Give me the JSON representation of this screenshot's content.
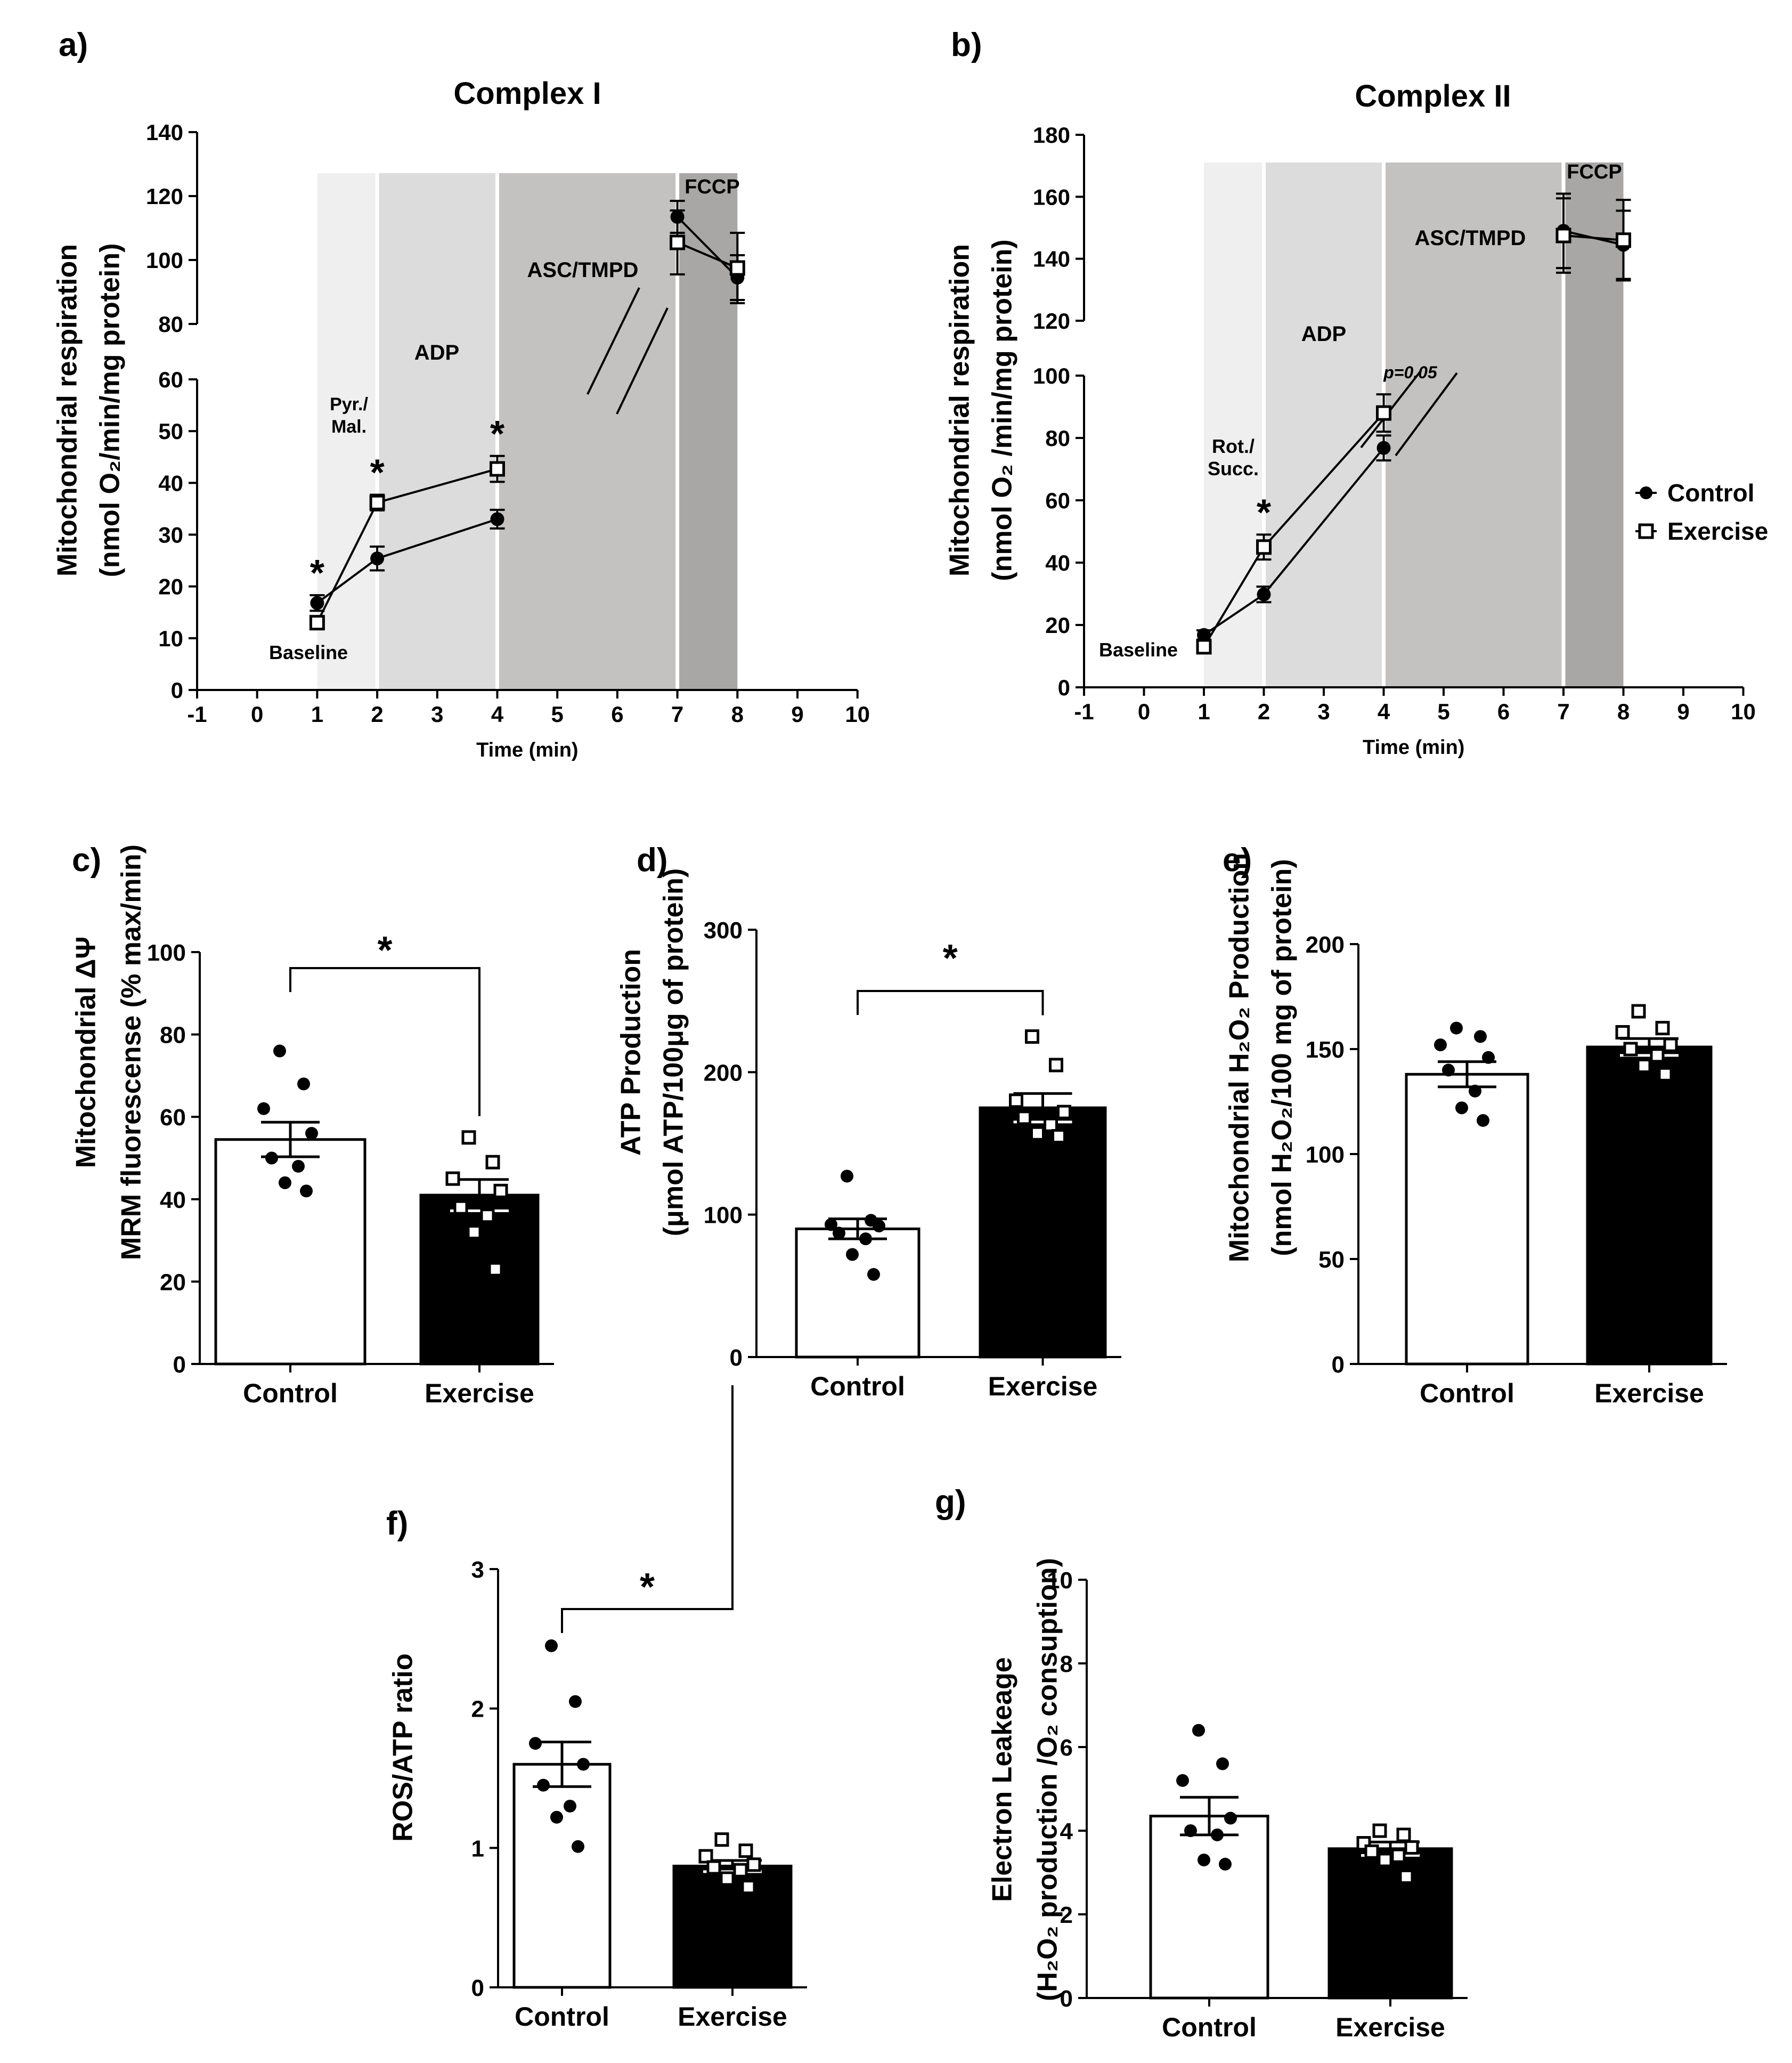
{
  "chart_data": [
    {
      "id": "a",
      "panel_label": "a)",
      "type": "line",
      "title": "Complex I",
      "xlabel": "Time (min)",
      "ylabel": [
        "Mitochondrial respiration",
        "(nmol O₂/min/mg protein)"
      ],
      "xlim": [
        -1,
        10
      ],
      "xticks": [
        "-1",
        "0",
        "1",
        "2",
        "3",
        "4",
        "5",
        "6",
        "7",
        "8",
        "9",
        "10"
      ],
      "ylim_lower": [
        0,
        60
      ],
      "yticks_lower": [
        "0",
        "10",
        "20",
        "30",
        "40",
        "50",
        "60"
      ],
      "ylim_upper": [
        80,
        140
      ],
      "yticks_upper": [
        "80",
        "100",
        "120",
        "140"
      ],
      "phases": [
        {
          "label": "Baseline",
          "x_start": 1,
          "x_end": 1
        },
        {
          "label": "Pyr./Mal.",
          "x_start": 1,
          "x_end": 2
        },
        {
          "label": "ADP",
          "x_start": 2,
          "x_end": 4
        },
        {
          "label": "ASC/TMPD",
          "x_start": 4,
          "x_end": 7
        },
        {
          "label": "FCCP",
          "x_start": 7,
          "x_end": 8
        }
      ],
      "series": [
        {
          "name": "Control",
          "marker": "filled-circle",
          "points": [
            [
              1,
              16.8
            ],
            [
              2,
              25.4
            ],
            [
              4,
              33.0
            ],
            [
              7,
              113.5
            ],
            [
              8,
              94.5
            ]
          ],
          "errors": [
            1.5,
            2.3,
            1.8,
            5,
            7
          ]
        },
        {
          "name": "Exercise",
          "marker": "open-square",
          "points": [
            [
              1,
              13.0
            ],
            [
              2,
              36.2
            ],
            [
              4,
              42.7
            ],
            [
              7,
              105.5
            ],
            [
              8,
              97.5
            ]
          ],
          "errors": [
            1,
            1.5,
            2.5,
            10,
            11
          ]
        }
      ],
      "significance": [
        {
          "x": 1,
          "label": "*"
        },
        {
          "x": 2,
          "label": "*"
        },
        {
          "x": 4,
          "label": "*"
        }
      ]
    },
    {
      "id": "b",
      "panel_label": "b)",
      "type": "line",
      "title": "Complex II",
      "xlabel": "Time (min)",
      "ylabel": [
        "Mitochondrial respiration",
        "(nmol O₂ /min/mg protein)"
      ],
      "xlim": [
        -1,
        10
      ],
      "xticks": [
        "-1",
        "0",
        "1",
        "2",
        "3",
        "4",
        "5",
        "6",
        "7",
        "8",
        "9",
        "10"
      ],
      "ylim_lower": [
        0,
        100
      ],
      "yticks_lower": [
        "0",
        "20",
        "40",
        "60",
        "80",
        "100"
      ],
      "ylim_upper": [
        120,
        180
      ],
      "yticks_upper": [
        "120",
        "140",
        "160",
        "180"
      ],
      "phases": [
        {
          "label": "Baseline",
          "x_start": 1,
          "x_end": 1
        },
        {
          "label": "Rot./Succ.",
          "x_start": 1,
          "x_end": 2
        },
        {
          "label": "ADP",
          "x_start": 2,
          "x_end": 4
        },
        {
          "label": "ASC/TMPD",
          "x_start": 4,
          "x_end": 7
        },
        {
          "label": "FCCP",
          "x_start": 7,
          "x_end": 8
        }
      ],
      "series": [
        {
          "name": "Control",
          "marker": "filled-circle",
          "points": [
            [
              1,
              16.8
            ],
            [
              2,
              29.8
            ],
            [
              4,
              76.8
            ],
            [
              7,
              149.0
            ],
            [
              8,
              144.5
            ]
          ],
          "errors": [
            1.5,
            2.5,
            4,
            12,
            11
          ]
        },
        {
          "name": "Exercise",
          "marker": "open-square",
          "points": [
            [
              1,
              13.0
            ],
            [
              2,
              45.0
            ],
            [
              4,
              88.0
            ],
            [
              7,
              147.5
            ],
            [
              8,
              146.0
            ]
          ],
          "errors": [
            1,
            4,
            6,
            12,
            13
          ]
        }
      ],
      "significance": [
        {
          "x": 2,
          "label": "*"
        },
        {
          "x": 4,
          "label": "p=0.05"
        }
      ],
      "legend": [
        "Control",
        "Exercise"
      ]
    },
    {
      "id": "c",
      "panel_label": "c)",
      "type": "bar",
      "categories": [
        "Control",
        "Exercise"
      ],
      "values": [
        54.5,
        41.0
      ],
      "sem": [
        4.2,
        3.8
      ],
      "points": [
        [
          76,
          68,
          62,
          56,
          50,
          48,
          44,
          42
        ],
        [
          55,
          49,
          45,
          42,
          38,
          36,
          32,
          23
        ]
      ],
      "ylabel": [
        "Mitochondrial ΔΨ",
        "MRM fluorescense (% max/min)"
      ],
      "ylim": [
        0,
        100
      ],
      "yticks": [
        "0",
        "20",
        "40",
        "60",
        "80",
        "100"
      ],
      "significance": "*"
    },
    {
      "id": "d",
      "panel_label": "d)",
      "type": "bar",
      "categories": [
        "Control",
        "Exercise"
      ],
      "values": [
        90.0,
        175.0
      ],
      "sem": [
        7,
        10
      ],
      "points": [
        [
          127,
          96,
          93,
          92,
          87,
          83,
          72,
          58
        ],
        [
          225,
          205,
          180,
          172,
          168,
          163,
          157,
          155
        ]
      ],
      "ylabel": [
        "ATP Production",
        "(μmol ATP/100μg of protein)"
      ],
      "ylim": [
        0,
        300
      ],
      "yticks": [
        "0",
        "100",
        "200",
        "300"
      ],
      "significance": "*"
    },
    {
      "id": "e",
      "panel_label": "e)",
      "type": "bar",
      "categories": [
        "Control",
        "Exercise"
      ],
      "values": [
        138.0,
        151.0
      ],
      "sem": [
        6,
        4
      ],
      "points": [
        [
          160,
          156,
          152,
          146,
          140,
          130,
          122,
          116
        ],
        [
          168,
          160,
          158,
          152,
          150,
          147,
          142,
          138
        ]
      ],
      "ylabel": [
        "Mitochondrial H₂O₂ Production",
        "(nmol H₂O₂/100 mg of protein)"
      ],
      "ylim": [
        0,
        200
      ],
      "yticks": [
        "0",
        "50",
        "100",
        "150",
        "200"
      ],
      "significance": ""
    },
    {
      "id": "f",
      "panel_label": "f)",
      "type": "bar",
      "categories": [
        "Control",
        "Exercise"
      ],
      "values": [
        1.6,
        0.87
      ],
      "sem": [
        0.16,
        0.04
      ],
      "points": [
        [
          2.45,
          2.05,
          1.75,
          1.6,
          1.45,
          1.3,
          1.22,
          1.01
        ],
        [
          1.06,
          0.98,
          0.94,
          0.88,
          0.86,
          0.84,
          0.78,
          0.72
        ]
      ],
      "ylabel": [
        "ROS/ATP ratio"
      ],
      "ylim": [
        0,
        3
      ],
      "yticks": [
        "0",
        "1",
        "2",
        "3"
      ],
      "significance": "*"
    },
    {
      "id": "g",
      "panel_label": "g)",
      "type": "bar",
      "categories": [
        "Control",
        "Exercise"
      ],
      "values": [
        4.35,
        3.57
      ],
      "sem": [
        0.45,
        0.16
      ],
      "points": [
        [
          6.4,
          5.6,
          5.2,
          4.3,
          4.0,
          3.9,
          3.3,
          3.2
        ],
        [
          4.0,
          3.9,
          3.7,
          3.6,
          3.5,
          3.4,
          3.3,
          2.9
        ]
      ],
      "ylabel": [
        "Electron Leakeage",
        "(H₂O₂ production /O₂ consuption)"
      ],
      "ylim": [
        0,
        10
      ],
      "yticks": [
        "0",
        "2",
        "4",
        "6",
        "8",
        "10"
      ],
      "significance": ""
    }
  ]
}
